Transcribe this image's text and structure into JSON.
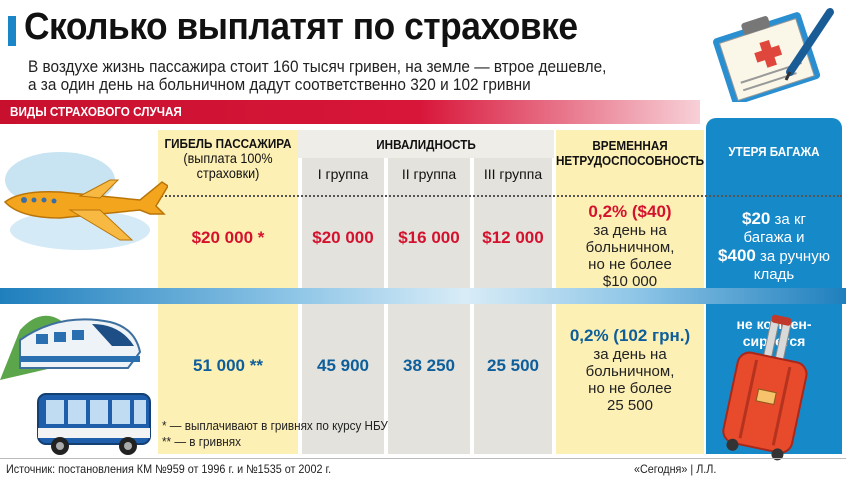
{
  "title": "Сколько выплатят по страховке",
  "subtitle_line1": "В воздухе жизнь пассажира стоит 160 тысяч гривен, на земле — втрое дешевле,",
  "subtitle_line2": "а за один день на больничном дадут соответственно 320 и 102 гривни",
  "section_label": "ВИДЫ СТРАХОВОГО СЛУЧАЯ",
  "headers": {
    "death_line1": "ГИБЕЛЬ ПАССАЖИРА",
    "death_line2": "(выплата 100%",
    "death_line3": "страховки)",
    "disability": "ИНВАЛИДНОСТЬ",
    "group1": "I группа",
    "group2": "II группа",
    "group3": "III группа",
    "temp_line1": "Временная",
    "temp_line2": "нетрудоспособность",
    "luggage": "Утеря багажа"
  },
  "air": {
    "death": "$20 000 *",
    "group1": "$20 000",
    "group2": "$16 000",
    "group3": "$12 000",
    "temp_value": "0,2% ($40)",
    "temp_line1": "за день на",
    "temp_line2": "больничном,",
    "temp_line3": "но не более",
    "temp_line4": "$10 000",
    "lug_v1": "$20",
    "lug_t1": " за кг",
    "lug_t2": "багажа и",
    "lug_v2": "$400",
    "lug_t3": " за ручную",
    "lug_t4": "кладь"
  },
  "ground": {
    "death": "51 000 **",
    "group1": "45 900",
    "group2": "38 250",
    "group3": "25 500",
    "temp_value": "0,2% (102 грн.)",
    "temp_line1": "за день на",
    "temp_line2": "больничном,",
    "temp_line3": "но не более",
    "temp_line4": "25 500",
    "lug_line1": "не компен-",
    "lug_line2": "сируется"
  },
  "footnote1": "* — выплачивают в гривнях по курсу НБУ",
  "footnote2": "** — в гривнях",
  "source": "Источник: постановления КМ №959 от 1996 г. и №1535 от 2002 г.",
  "credit": "«Сегодня» | Л.Л.",
  "colors": {
    "red": "#d4122e",
    "blue": "#1689c9",
    "yellow": "#fdf0b4",
    "grey": "#e3e2dc"
  },
  "icons": [
    "airplane-icon",
    "train-icon",
    "bus-icon",
    "suitcase-icon",
    "clipboard-pen-icon"
  ]
}
